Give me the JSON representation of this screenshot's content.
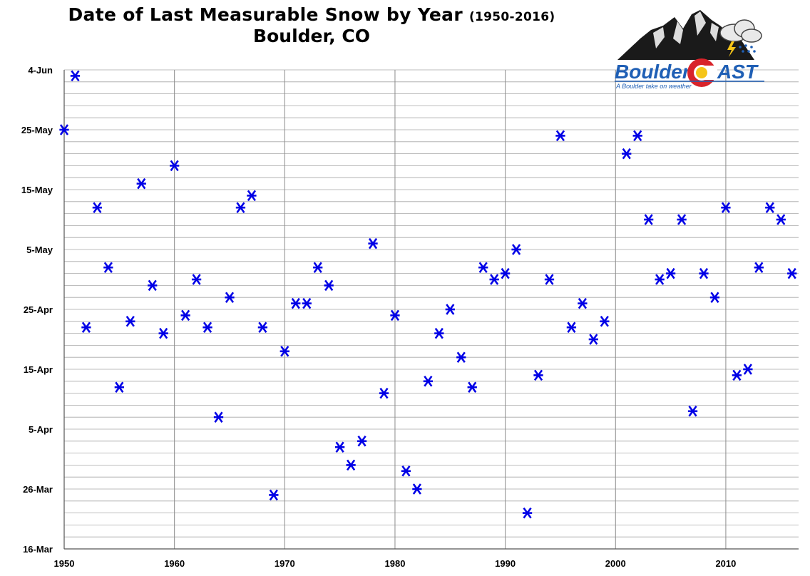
{
  "chart_data": {
    "type": "scatter",
    "title": "Date of Last Measurable Snow by Year",
    "title_range": "(1950-2016)",
    "subtitle": "Boulder, CO",
    "xlabel": "",
    "ylabel": "",
    "xlim": [
      1950,
      2016.6
    ],
    "ylim": [
      "16-Mar",
      "4-Jun"
    ],
    "y_unit": "day_of_year",
    "ylim_doy": [
      75,
      155
    ],
    "x_ticks": [
      1950,
      1960,
      1970,
      1980,
      1990,
      2000,
      2010
    ],
    "y_ticks": [
      {
        "label": "16-Mar",
        "doy": 75
      },
      {
        "label": "26-Mar",
        "doy": 85
      },
      {
        "label": "5-Apr",
        "doy": 95
      },
      {
        "label": "15-Apr",
        "doy": 105
      },
      {
        "label": "25-Apr",
        "doy": 115
      },
      {
        "label": "5-May",
        "doy": 125
      },
      {
        "label": "15-May",
        "doy": 135
      },
      {
        "label": "25-May",
        "doy": 145
      },
      {
        "label": "4-Jun",
        "doy": 155
      }
    ],
    "grid": true,
    "marker": "asterisk",
    "marker_color": "#0000e6",
    "series": [
      {
        "points": [
          [
            1950,
            145
          ],
          [
            1951,
            154
          ],
          [
            1952,
            112
          ],
          [
            1953,
            132
          ],
          [
            1954,
            122
          ],
          [
            1955,
            102
          ],
          [
            1956,
            113
          ],
          [
            1957,
            136
          ],
          [
            1958,
            119
          ],
          [
            1959,
            111
          ],
          [
            1960,
            139
          ],
          [
            1961,
            114
          ],
          [
            1962,
            120
          ],
          [
            1963,
            112
          ],
          [
            1964,
            97
          ],
          [
            1965,
            117
          ],
          [
            1966,
            132
          ],
          [
            1967,
            134
          ],
          [
            1968,
            112
          ],
          [
            1969,
            84
          ],
          [
            1970,
            108
          ],
          [
            1971,
            116
          ],
          [
            1972,
            116
          ],
          [
            1973,
            122
          ],
          [
            1974,
            119
          ],
          [
            1975,
            92
          ],
          [
            1976,
            89
          ],
          [
            1977,
            93
          ],
          [
            1978,
            126
          ],
          [
            1979,
            101
          ],
          [
            1980,
            114
          ],
          [
            1981,
            88
          ],
          [
            1982,
            85
          ],
          [
            1983,
            103
          ],
          [
            1984,
            111
          ],
          [
            1985,
            115
          ],
          [
            1986,
            107
          ],
          [
            1987,
            102
          ],
          [
            1988,
            122
          ],
          [
            1989,
            120
          ],
          [
            1990,
            121
          ],
          [
            1991,
            125
          ],
          [
            1992,
            81
          ],
          [
            1993,
            104
          ],
          [
            1994,
            120
          ],
          [
            1995,
            144
          ],
          [
            1996,
            112
          ],
          [
            1997,
            116
          ],
          [
            1998,
            110
          ],
          [
            1999,
            113
          ],
          [
            2001,
            141
          ],
          [
            2002,
            144
          ],
          [
            2003,
            130
          ],
          [
            2004,
            120
          ],
          [
            2005,
            121
          ],
          [
            2006,
            130
          ],
          [
            2007,
            98
          ],
          [
            2008,
            121
          ],
          [
            2009,
            117
          ],
          [
            2010,
            132
          ],
          [
            2011,
            104
          ],
          [
            2012,
            105
          ],
          [
            2013,
            122
          ],
          [
            2014,
            132
          ],
          [
            2015,
            130
          ],
          [
            2016,
            121
          ]
        ]
      }
    ]
  },
  "logo": {
    "brand_left": "Boulder",
    "brand_right": "AST",
    "tagline": "A Boulder take on weather",
    "colors": {
      "brand_blue": "#1f5fb5",
      "flag_red": "#d8232a",
      "flag_yellow": "#f5c518",
      "mountain": "#1a1a1a"
    }
  }
}
